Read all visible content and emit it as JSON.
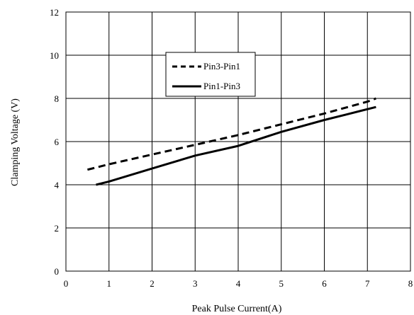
{
  "chart_data": {
    "type": "line",
    "title": "",
    "xlabel": "Peak Pulse Current(A)",
    "ylabel": "Clamping Voltage (V)",
    "xlim": [
      0,
      8
    ],
    "ylim": [
      0,
      12
    ],
    "xticks": [
      0,
      1,
      2,
      3,
      4,
      5,
      6,
      7,
      8
    ],
    "yticks": [
      0,
      2,
      4,
      6,
      8,
      10,
      12
    ],
    "grid": true,
    "legend_position": "top-left-inside",
    "series": [
      {
        "name": "Pin3-Pin1",
        "style": "dashed",
        "color": "#000000",
        "x": [
          0.5,
          1.0,
          2.0,
          3.0,
          4.0,
          5.0,
          6.0,
          7.0,
          7.2
        ],
        "y": [
          4.7,
          4.95,
          5.4,
          5.85,
          6.3,
          6.8,
          7.3,
          7.85,
          8.0
        ]
      },
      {
        "name": "Pin1-Pin3",
        "style": "solid",
        "color": "#000000",
        "x": [
          0.7,
          1.0,
          2.0,
          3.0,
          4.0,
          5.0,
          6.0,
          6.5,
          7.2
        ],
        "y": [
          4.0,
          4.15,
          4.75,
          5.35,
          5.8,
          6.45,
          7.0,
          7.25,
          7.6
        ]
      }
    ]
  }
}
